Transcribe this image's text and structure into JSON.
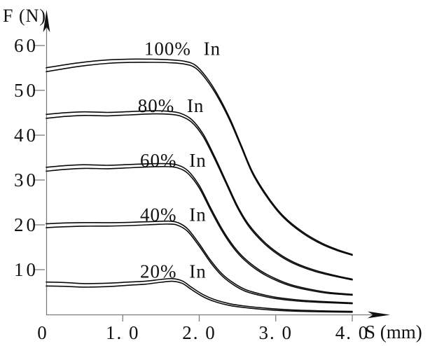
{
  "figure": {
    "background": "#ffffff",
    "curve_color": "#0b0b0b",
    "axis_color": "#7d7d7d",
    "arrow_color": "#111111"
  },
  "chart_data": {
    "type": "line",
    "title": "",
    "xlabel": "S (mm)",
    "ylabel": "F (N)",
    "xlim": [
      0,
      4.5
    ],
    "ylim": [
      0,
      67
    ],
    "grid": false,
    "line_style": "double-stroke-hand-drawn",
    "legend_position": "inline-labels-above-curves",
    "x_ticks": [
      {
        "value": 0,
        "label": "0"
      },
      {
        "value": 1.0,
        "label": "1. 0"
      },
      {
        "value": 2.0,
        "label": "2. 0"
      },
      {
        "value": 3.0,
        "label": "3. 0"
      },
      {
        "value": 4.0,
        "label": "4. 0"
      }
    ],
    "y_ticks": [
      {
        "value": 10,
        "label": "10"
      },
      {
        "value": 20,
        "label": "20"
      },
      {
        "value": 30,
        "label": "30"
      },
      {
        "value": 40,
        "label": "40"
      },
      {
        "value": 50,
        "label": "50"
      },
      {
        "value": 60,
        "label": "60"
      }
    ],
    "series": [
      {
        "name": "100% In",
        "label": {
          "text": "100% In",
          "x": 1.78,
          "y": 59.3
        },
        "points": [
          [
            0,
            54.6
          ],
          [
            0.25,
            55.3
          ],
          [
            0.5,
            55.9
          ],
          [
            0.8,
            56.4
          ],
          [
            1.1,
            56.6
          ],
          [
            1.4,
            56.6
          ],
          [
            1.6,
            56.5
          ],
          [
            1.8,
            56.2
          ],
          [
            1.95,
            55.3
          ],
          [
            2.1,
            52.5
          ],
          [
            2.25,
            48.5
          ],
          [
            2.4,
            43.5
          ],
          [
            2.55,
            37.5
          ],
          [
            2.7,
            31.5
          ],
          [
            2.9,
            26.0
          ],
          [
            3.1,
            21.8
          ],
          [
            3.35,
            18.3
          ],
          [
            3.6,
            15.8
          ],
          [
            3.8,
            14.4
          ],
          [
            4.0,
            13.3
          ]
        ]
      },
      {
        "name": "80% In",
        "label": {
          "text": "80% In",
          "x": 1.63,
          "y": 46.6
        },
        "points": [
          [
            0,
            44.2
          ],
          [
            0.25,
            44.6
          ],
          [
            0.5,
            44.8
          ],
          [
            0.8,
            44.7
          ],
          [
            1.1,
            44.9
          ],
          [
            1.4,
            45.1
          ],
          [
            1.6,
            45.0
          ],
          [
            1.75,
            44.6
          ],
          [
            1.9,
            43.2
          ],
          [
            2.05,
            40.0
          ],
          [
            2.2,
            35.0
          ],
          [
            2.35,
            29.5
          ],
          [
            2.5,
            24.0
          ],
          [
            2.65,
            19.8
          ],
          [
            2.85,
            16.0
          ],
          [
            3.05,
            13.3
          ],
          [
            3.25,
            11.4
          ],
          [
            3.5,
            9.8
          ],
          [
            3.75,
            8.7
          ],
          [
            4.0,
            7.8
          ]
        ]
      },
      {
        "name": "60% In",
        "label": {
          "text": "60% In",
          "x": 1.66,
          "y": 34.4
        },
        "points": [
          [
            0,
            32.4
          ],
          [
            0.25,
            32.8
          ],
          [
            0.5,
            33.0
          ],
          [
            0.8,
            32.9
          ],
          [
            1.1,
            33.1
          ],
          [
            1.4,
            33.3
          ],
          [
            1.6,
            33.3
          ],
          [
            1.72,
            33.0
          ],
          [
            1.85,
            31.8
          ],
          [
            2.0,
            28.5
          ],
          [
            2.15,
            23.5
          ],
          [
            2.3,
            18.8
          ],
          [
            2.45,
            15.0
          ],
          [
            2.6,
            12.2
          ],
          [
            2.8,
            9.6
          ],
          [
            3.0,
            7.8
          ],
          [
            3.2,
            6.5
          ],
          [
            3.45,
            5.5
          ],
          [
            3.7,
            4.8
          ],
          [
            4.0,
            4.4
          ]
        ]
      },
      {
        "name": "40% In",
        "label": {
          "text": "40% In",
          "x": 1.66,
          "y": 22.3
        },
        "points": [
          [
            0,
            19.8
          ],
          [
            0.25,
            20.0
          ],
          [
            0.5,
            20.1
          ],
          [
            0.8,
            20.1
          ],
          [
            1.1,
            20.2
          ],
          [
            1.4,
            20.4
          ],
          [
            1.6,
            20.5
          ],
          [
            1.72,
            20.2
          ],
          [
            1.85,
            18.8
          ],
          [
            2.0,
            15.5
          ],
          [
            2.15,
            11.8
          ],
          [
            2.3,
            8.8
          ],
          [
            2.45,
            6.8
          ],
          [
            2.6,
            5.4
          ],
          [
            2.8,
            4.4
          ],
          [
            3.0,
            3.7
          ],
          [
            3.3,
            3.1
          ],
          [
            3.6,
            2.8
          ],
          [
            4.0,
            2.5
          ]
        ]
      },
      {
        "name": "20% In",
        "label": {
          "text": "20% In",
          "x": 1.66,
          "y": 9.6
        },
        "points": [
          [
            0,
            6.8
          ],
          [
            0.25,
            6.7
          ],
          [
            0.5,
            6.5
          ],
          [
            0.8,
            6.6
          ],
          [
            1.1,
            6.9
          ],
          [
            1.3,
            7.1
          ],
          [
            1.5,
            7.5
          ],
          [
            1.65,
            7.7
          ],
          [
            1.78,
            7.2
          ],
          [
            1.9,
            5.8
          ],
          [
            2.05,
            4.2
          ],
          [
            2.2,
            3.1
          ],
          [
            2.4,
            2.2
          ],
          [
            2.6,
            1.7
          ],
          [
            2.9,
            1.2
          ],
          [
            3.2,
            0.9
          ],
          [
            3.6,
            0.7
          ],
          [
            4.0,
            0.6
          ]
        ]
      }
    ]
  }
}
